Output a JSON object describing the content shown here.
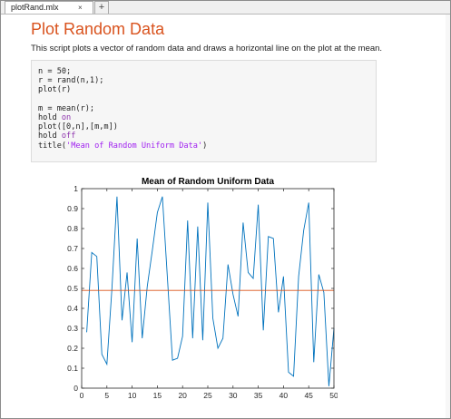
{
  "tabs": [
    {
      "label": "plotRand.mlx",
      "close": "×"
    }
  ],
  "add_tab_label": "+",
  "document": {
    "title": "Plot Random Data",
    "description": "This script plots a vector of random data and draws a horizontal line on the plot at the mean."
  },
  "code_lines": [
    {
      "parts": [
        {
          "text": "n = 50;",
          "cls": ""
        }
      ]
    },
    {
      "parts": [
        {
          "text": "r = rand(n,1);",
          "cls": ""
        }
      ]
    },
    {
      "parts": [
        {
          "text": "plot(r)",
          "cls": ""
        }
      ]
    },
    {
      "parts": []
    },
    {
      "parts": [
        {
          "text": "m = mean(r);",
          "cls": ""
        }
      ]
    },
    {
      "parts": [
        {
          "text": "hold ",
          "cls": ""
        },
        {
          "text": "on",
          "cls": "kw"
        }
      ]
    },
    {
      "parts": [
        {
          "text": "plot([0,n],[m,m])",
          "cls": ""
        }
      ]
    },
    {
      "parts": [
        {
          "text": "hold ",
          "cls": ""
        },
        {
          "text": "off",
          "cls": "kw"
        }
      ]
    },
    {
      "parts": [
        {
          "text": "title(",
          "cls": ""
        },
        {
          "text": "'Mean of Random Uniform Data'",
          "cls": "str"
        },
        {
          "text": ")",
          "cls": ""
        }
      ]
    }
  ],
  "colors": {
    "title": "#d9531e",
    "series_line": "#0072bd",
    "mean_line": "#d95319",
    "keyword": "#8e33ad",
    "string": "#a020f0"
  },
  "chart_data": {
    "type": "line",
    "title": "Mean of Random Uniform Data",
    "xlabel": "",
    "ylabel": "",
    "xlim": [
      0,
      50
    ],
    "ylim": [
      0,
      1
    ],
    "xticks": [
      0,
      5,
      10,
      15,
      20,
      25,
      30,
      35,
      40,
      45,
      50
    ],
    "yticks": [
      0,
      0.1,
      0.2,
      0.3,
      0.4,
      0.5,
      0.6,
      0.7,
      0.8,
      0.9,
      1
    ],
    "grid": false,
    "x": [
      1,
      2,
      3,
      4,
      5,
      6,
      7,
      8,
      9,
      10,
      11,
      12,
      13,
      14,
      15,
      16,
      17,
      18,
      19,
      20,
      21,
      22,
      23,
      24,
      25,
      26,
      27,
      28,
      29,
      30,
      31,
      32,
      33,
      34,
      35,
      36,
      37,
      38,
      39,
      40,
      41,
      42,
      43,
      44,
      45,
      46,
      47,
      48,
      49,
      50
    ],
    "series": [
      {
        "values": [
          0.28,
          0.68,
          0.66,
          0.17,
          0.12,
          0.5,
          0.96,
          0.34,
          0.58,
          0.23,
          0.75,
          0.25,
          0.51,
          0.69,
          0.88,
          0.96,
          0.55,
          0.14,
          0.15,
          0.26,
          0.84,
          0.25,
          0.81,
          0.24,
          0.93,
          0.35,
          0.2,
          0.25,
          0.62,
          0.47,
          0.36,
          0.83,
          0.58,
          0.55,
          0.92,
          0.29,
          0.76,
          0.75,
          0.38,
          0.56,
          0.08,
          0.06,
          0.56,
          0.79,
          0.93,
          0.13,
          0.57,
          0.48,
          0.01,
          0.3
        ]
      },
      {
        "x": [
          0,
          50
        ],
        "values": [
          0.49,
          0.49
        ]
      }
    ]
  }
}
